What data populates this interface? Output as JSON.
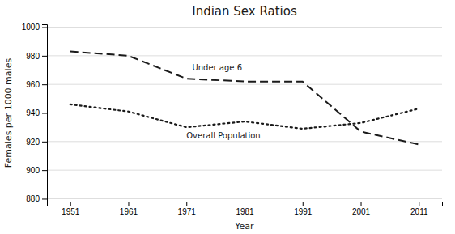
{
  "chart_data": {
    "type": "line",
    "title": "Indian Sex Ratios",
    "xlabel": "Year",
    "ylabel": "Females per 1000 males",
    "x": [
      1951,
      1961,
      1971,
      1981,
      1991,
      2001,
      2011
    ],
    "series": [
      {
        "values": [
          983,
          980,
          964,
          962,
          962,
          927,
          918
        ],
        "line_style": "dashed",
        "color": "#1a1a1a"
      },
      {
        "values": [
          946,
          941,
          930,
          934,
          929,
          933,
          943
        ],
        "line_style": "dotted",
        "color": "#1a1a1a"
      }
    ],
    "annotations": [
      {
        "text": "Under age 6",
        "x": 1972,
        "y": 970
      },
      {
        "text": "Overall Population",
        "x": 1971,
        "y": 922
      }
    ],
    "color": "#1a1a1a",
    "xlim": [
      1947,
      2015
    ],
    "xticks": [
      1951,
      1961,
      1971,
      1981,
      1991,
      2001,
      2011
    ],
    "ylim": [
      878,
      1002
    ],
    "yticks": [
      880,
      900,
      920,
      940,
      960,
      980,
      1000
    ],
    "grid": "y"
  }
}
